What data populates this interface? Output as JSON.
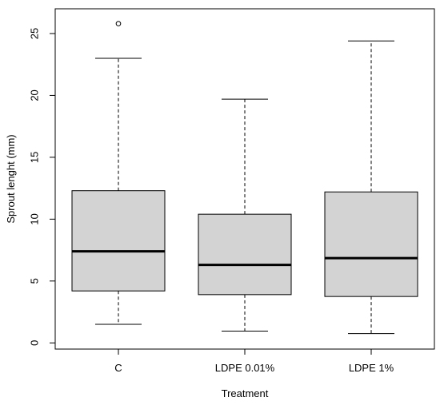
{
  "chart_data": {
    "type": "boxplot",
    "title": "",
    "xlabel": "Treatment",
    "ylabel": "Sprout lenght (mm)",
    "ylim": [
      -0.5,
      27
    ],
    "yticks": [
      "0",
      "5",
      "10",
      "15",
      "20",
      "25"
    ],
    "grid": false,
    "legend": "none",
    "categories": [
      "C",
      "LDPE 0.01%",
      "LDPE 1%"
    ],
    "boxes": [
      {
        "whisker_low": 1.5,
        "q1": 4.2,
        "median": 7.4,
        "q3": 12.3,
        "whisker_high": 23.0,
        "outliers": [
          25.8
        ]
      },
      {
        "whisker_low": 0.95,
        "q1": 3.9,
        "median": 6.3,
        "q3": 10.4,
        "whisker_high": 19.7,
        "outliers": []
      },
      {
        "whisker_low": 0.75,
        "q1": 3.75,
        "median": 6.85,
        "q3": 12.2,
        "whisker_high": 24.4,
        "outliers": []
      }
    ],
    "colors": {
      "box_fill": "#d3d3d3",
      "stroke": "#000000"
    }
  }
}
